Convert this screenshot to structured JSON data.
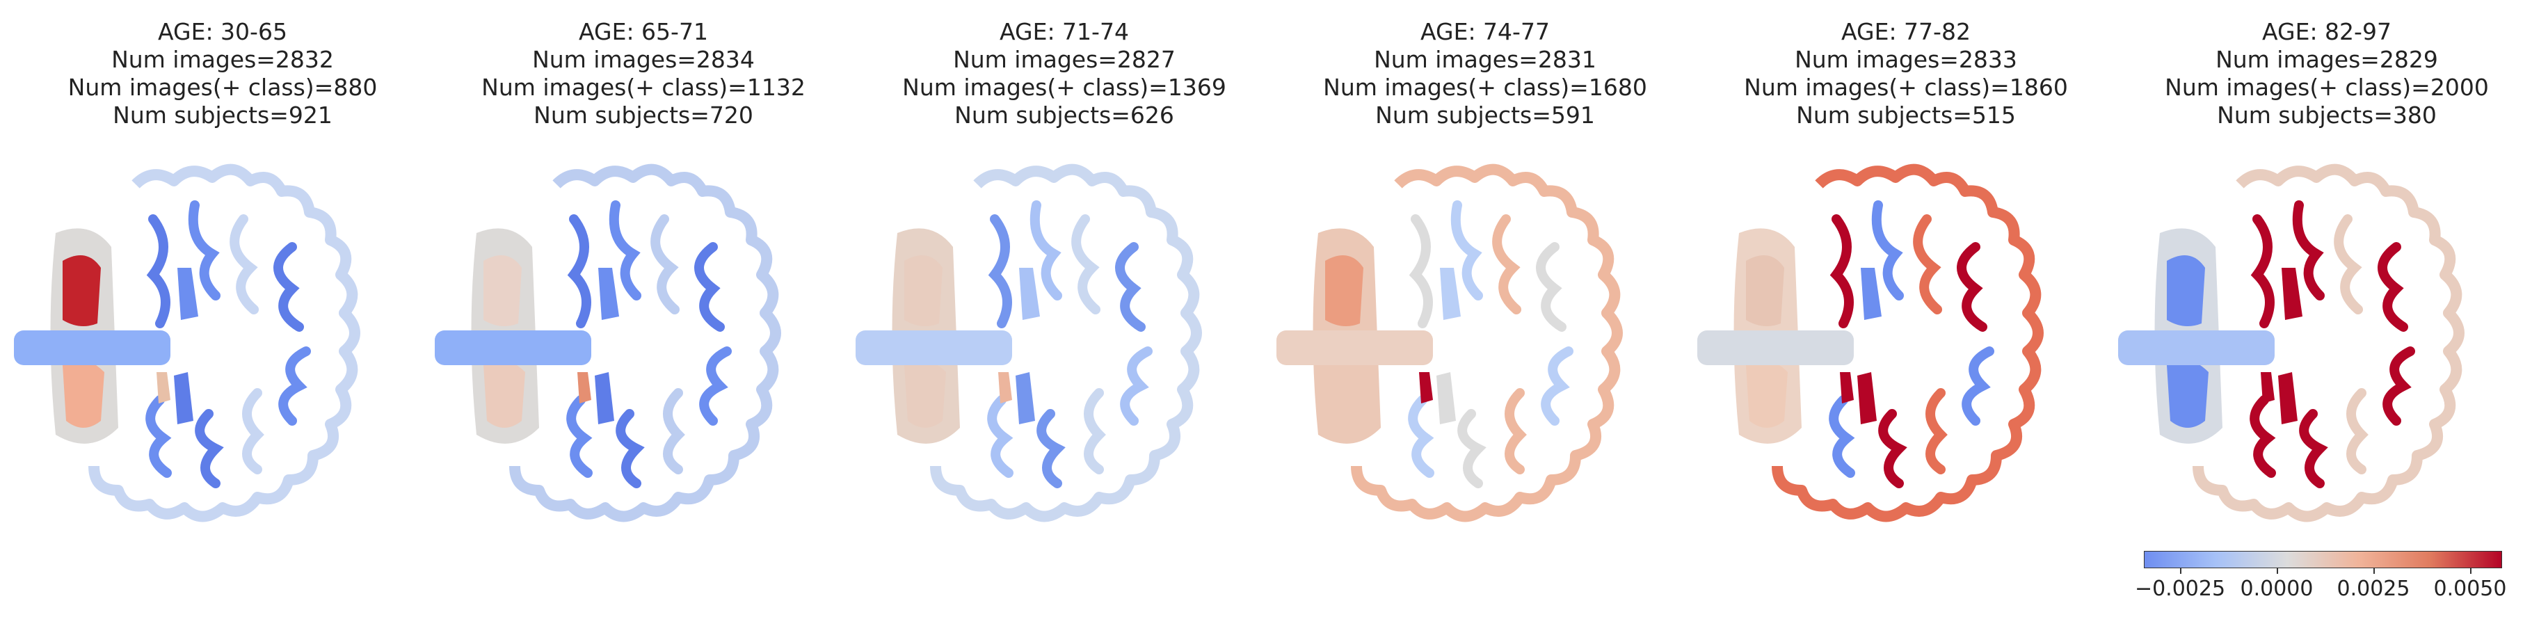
{
  "panels": [
    {
      "age": "AGE: 30-65",
      "images": "Num images=2832",
      "pos": "Num images(+ class)=880",
      "subjects": "Num subjects=921",
      "colors": {
        "stem": "#8fb0f8",
        "temporal": "#dcdad8",
        "hot": "#c3232c",
        "lower": "#f2ae93",
        "gyri": "#5e7de8",
        "outer": "#c7d6f2",
        "medial": "#6c8ef0",
        "accent": "#e8c0a8"
      }
    },
    {
      "age": "AGE: 65-71",
      "images": "Num images=2834",
      "pos": "Num images(+ class)=1132",
      "subjects": "Num subjects=720",
      "colors": {
        "stem": "#8fb0f8",
        "temporal": "#dcdad8",
        "hot": "#e9d2c8",
        "lower": "#ebcbbc",
        "gyri": "#5e7de8",
        "outer": "#bccdf0",
        "medial": "#6c8ef0",
        "accent": "#e58f72"
      }
    },
    {
      "age": "AGE: 71-74",
      "images": "Num images=2827",
      "pos": "Num images(+ class)=1369",
      "subjects": "Num subjects=626",
      "colors": {
        "stem": "#b9cef6",
        "temporal": "#e6d2c6",
        "hot": "#e8cdbf",
        "lower": "#e8cdbf",
        "gyri": "#7596ee",
        "outer": "#cad8f0",
        "medial": "#a9c2f6",
        "accent": "#ecb59d"
      }
    },
    {
      "age": "AGE: 74-77",
      "images": "Num images=2831",
      "pos": "Num images(+ class)=1680",
      "subjects": "Num subjects=591",
      "colors": {
        "stem": "#ebd0c2",
        "temporal": "#ebc8b6",
        "hot": "#eb9d80",
        "lower": "#ebc8b6",
        "gyri": "#dcdcdc",
        "outer": "#eeb89f",
        "medial": "#b9cff7",
        "accent": "#b40426"
      }
    },
    {
      "age": "AGE: 77-82",
      "images": "Num images=2833",
      "pos": "Num images(+ class)=1860",
      "subjects": "Num subjects=515",
      "colors": {
        "stem": "#d6dbe3",
        "temporal": "#ecd3c5",
        "hot": "#e7c5b4",
        "lower": "#eecbb8",
        "gyri": "#b40426",
        "outer": "#e56f55",
        "medial": "#6c8ef0",
        "accent": "#b40426"
      }
    },
    {
      "age": "AGE: 82-97",
      "images": "Num images=2829",
      "pos": "Num images(+ class)=2000",
      "subjects": "Num subjects=380",
      "colors": {
        "stem": "#a9c2f6",
        "temporal": "#d6dbe3",
        "hot": "#6c8ef0",
        "lower": "#6c8ef0",
        "gyri": "#b40426",
        "outer": "#e8cdbf",
        "medial": "#b40426",
        "accent": "#b40426"
      }
    }
  ],
  "colorbar": {
    "ticks": [
      "−0.0025",
      "0.0000",
      "0.0025",
      "0.0050"
    ],
    "tick_fracs": [
      0.1,
      0.37,
      0.64,
      0.91
    ],
    "gradient": [
      "#6f8ef0",
      "#a6c1f7",
      "#dcdcdc",
      "#f0b49a",
      "#e07b5f",
      "#b40426"
    ]
  }
}
